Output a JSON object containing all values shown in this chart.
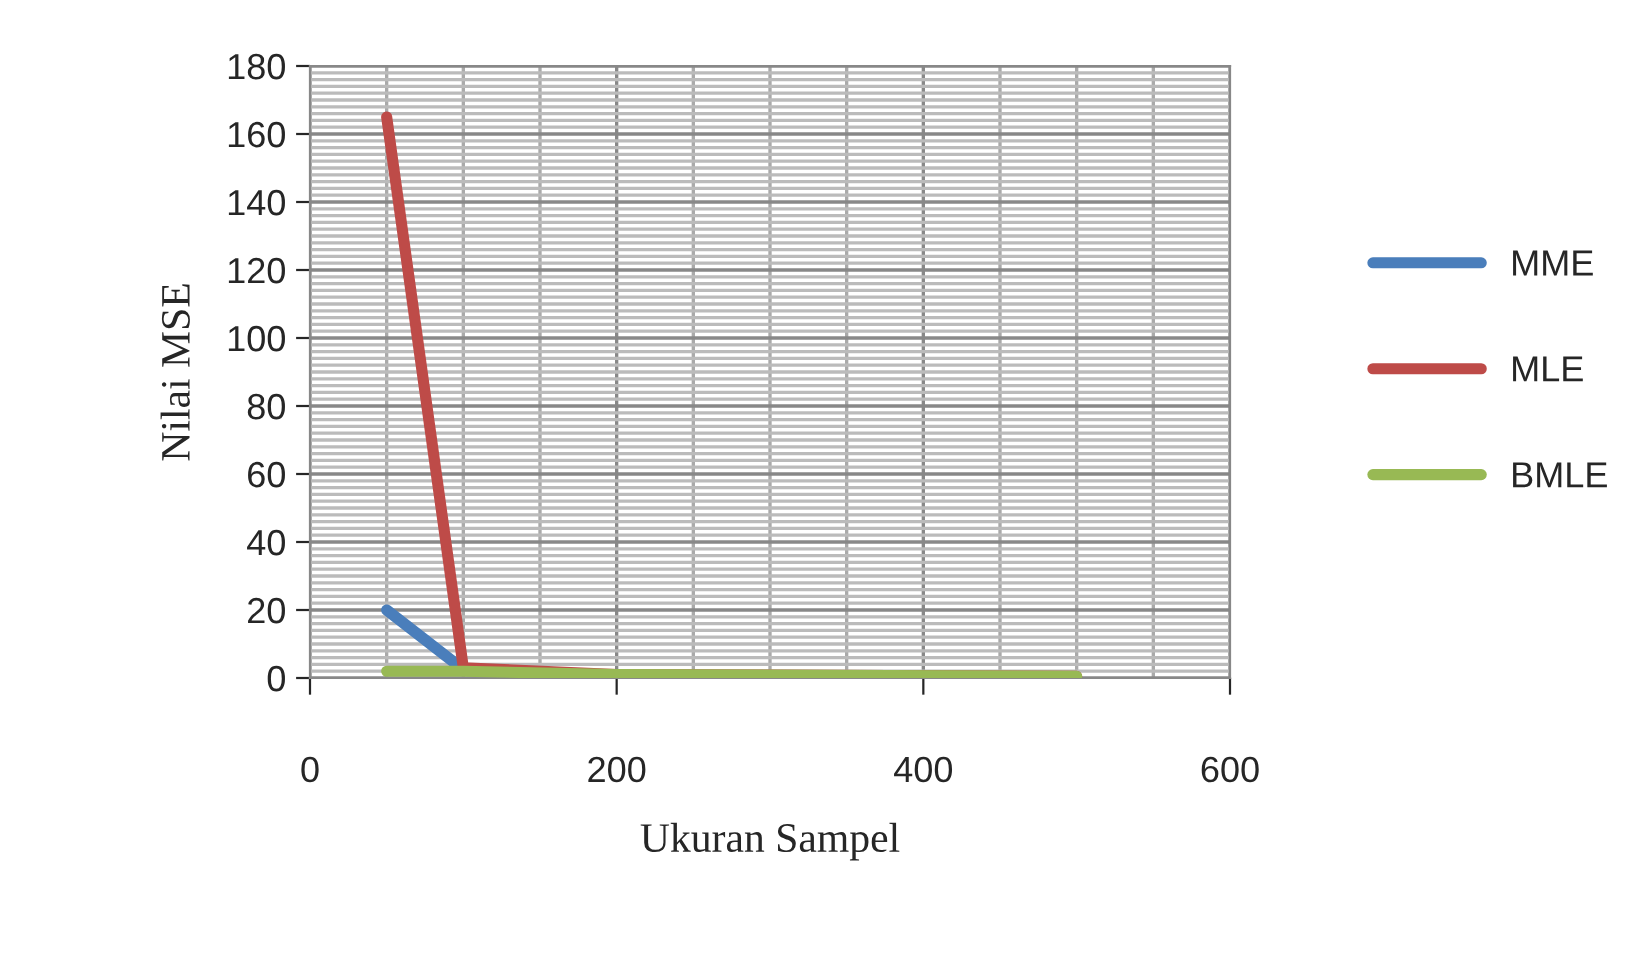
{
  "chart_data": {
    "type": "line",
    "xlabel": "Ukuran Sampel",
    "ylabel": "Nilai MSE",
    "x": [
      50,
      100,
      200,
      500
    ],
    "series": [
      {
        "name": "MME",
        "color": "#4a7ebb",
        "values": [
          20,
          2.5,
          null,
          null
        ]
      },
      {
        "name": "MLE",
        "color": "#be4b48",
        "values": [
          165,
          3,
          1,
          0.5
        ]
      },
      {
        "name": "BMLE",
        "color": "#98b954",
        "values": [
          2,
          2,
          1,
          0.5
        ]
      }
    ],
    "xlim": [
      0,
      600
    ],
    "xticks": [
      0,
      200,
      400,
      600
    ],
    "ylim": [
      0,
      180
    ],
    "yticks": [
      0,
      20,
      40,
      60,
      80,
      100,
      120,
      140,
      160,
      180
    ],
    "grid": true,
    "legend": "right",
    "marker": "none",
    "line_style": "solid"
  }
}
